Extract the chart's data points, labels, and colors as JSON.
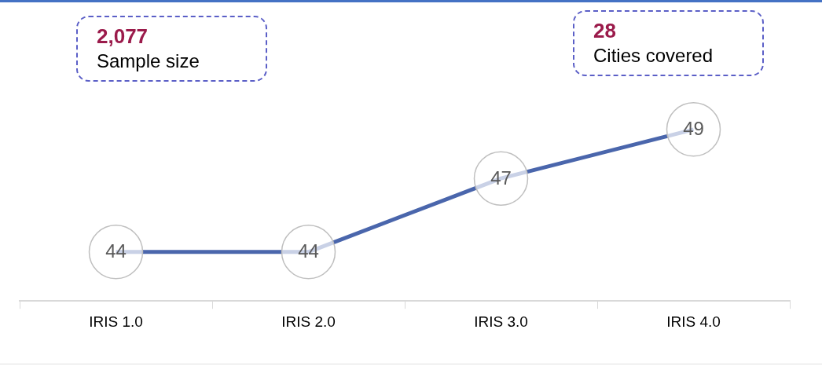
{
  "chart_data": {
    "type": "line",
    "categories": [
      "IRIS 1.0",
      "IRIS 2.0",
      "IRIS 3.0",
      "IRIS 4.0"
    ],
    "series": [
      {
        "color": "#4a66ac",
        "values": [
          44,
          44,
          47,
          49
        ]
      }
    ],
    "tick_labels": "x",
    "marker": "none",
    "line_style": "solid",
    "data_labels": true,
    "grid": false,
    "legend": false,
    "annotations": [
      "2,077",
      "Sample size",
      "28",
      "Cities covered"
    ]
  }
}
